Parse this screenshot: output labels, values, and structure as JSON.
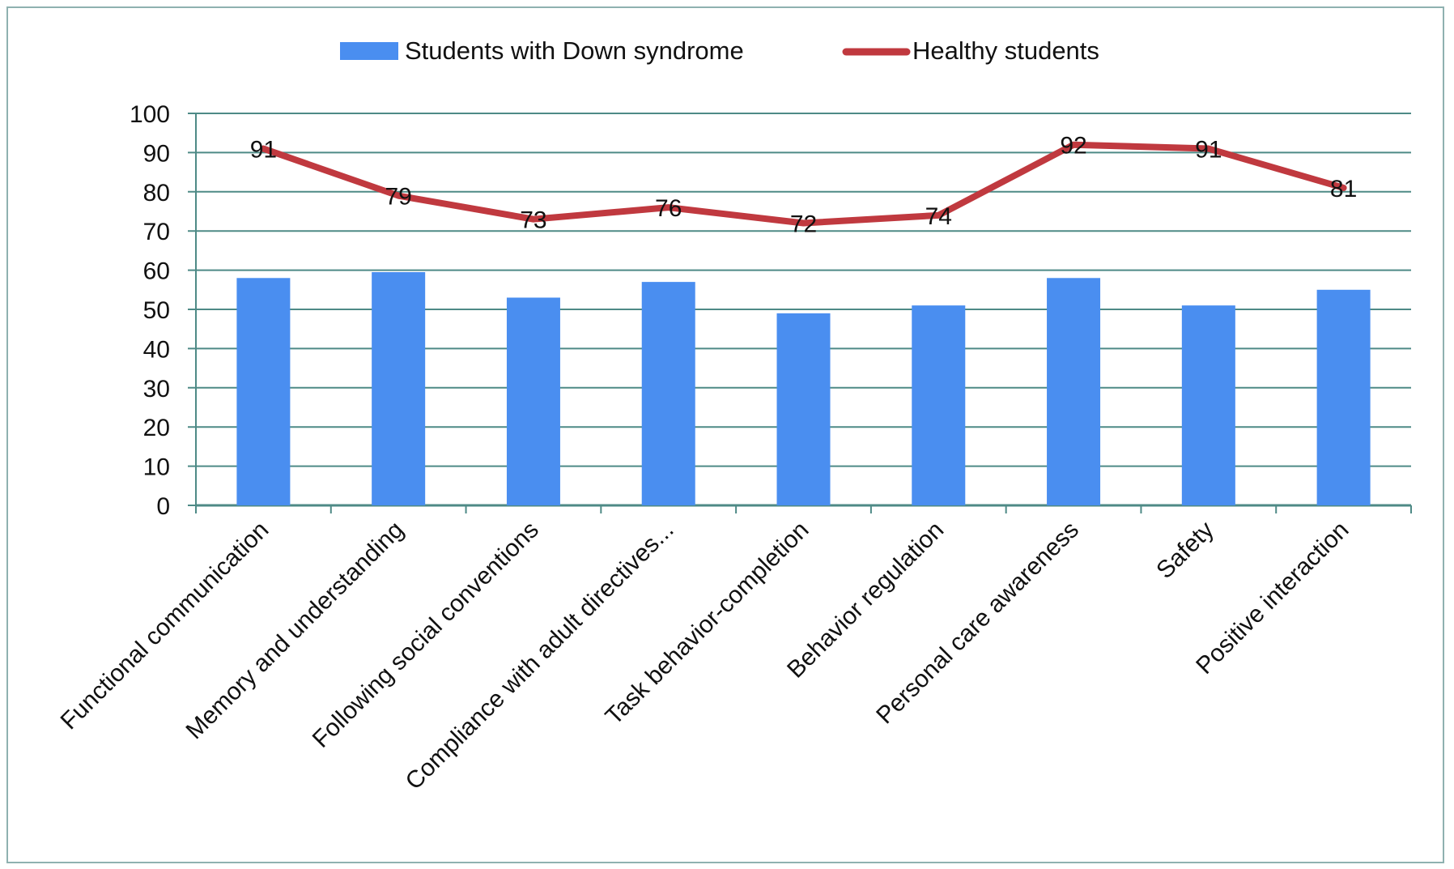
{
  "chart_data": {
    "type": "bar",
    "title": "",
    "xlabel": "",
    "ylabel": "",
    "ylim": [
      0,
      100
    ],
    "yticks": [
      0,
      10,
      20,
      30,
      40,
      50,
      60,
      70,
      80,
      90,
      100
    ],
    "grid": true,
    "legend_position": "top-center",
    "categories": [
      "Functional communication",
      "Memory and understanding",
      "Following social conventions",
      "Compliance with adult directives...",
      "Task behavior-completion",
      "Behavior regulation",
      "Personal care awareness",
      "Safety",
      "Positive interaction"
    ],
    "series": [
      {
        "name": "Students with Down syndrome",
        "type": "bar",
        "color": "#4a8ef0",
        "values": [
          58,
          59.5,
          53,
          57,
          49,
          51,
          58,
          51,
          55
        ]
      },
      {
        "name": "Healthy students",
        "type": "line",
        "color": "#c0393f",
        "values": [
          91,
          79,
          73,
          76,
          72,
          74,
          92,
          91,
          81
        ],
        "data_labels": [
          "91",
          "79",
          "73",
          "76",
          "72",
          "74",
          "92",
          "91",
          "81"
        ]
      }
    ]
  }
}
